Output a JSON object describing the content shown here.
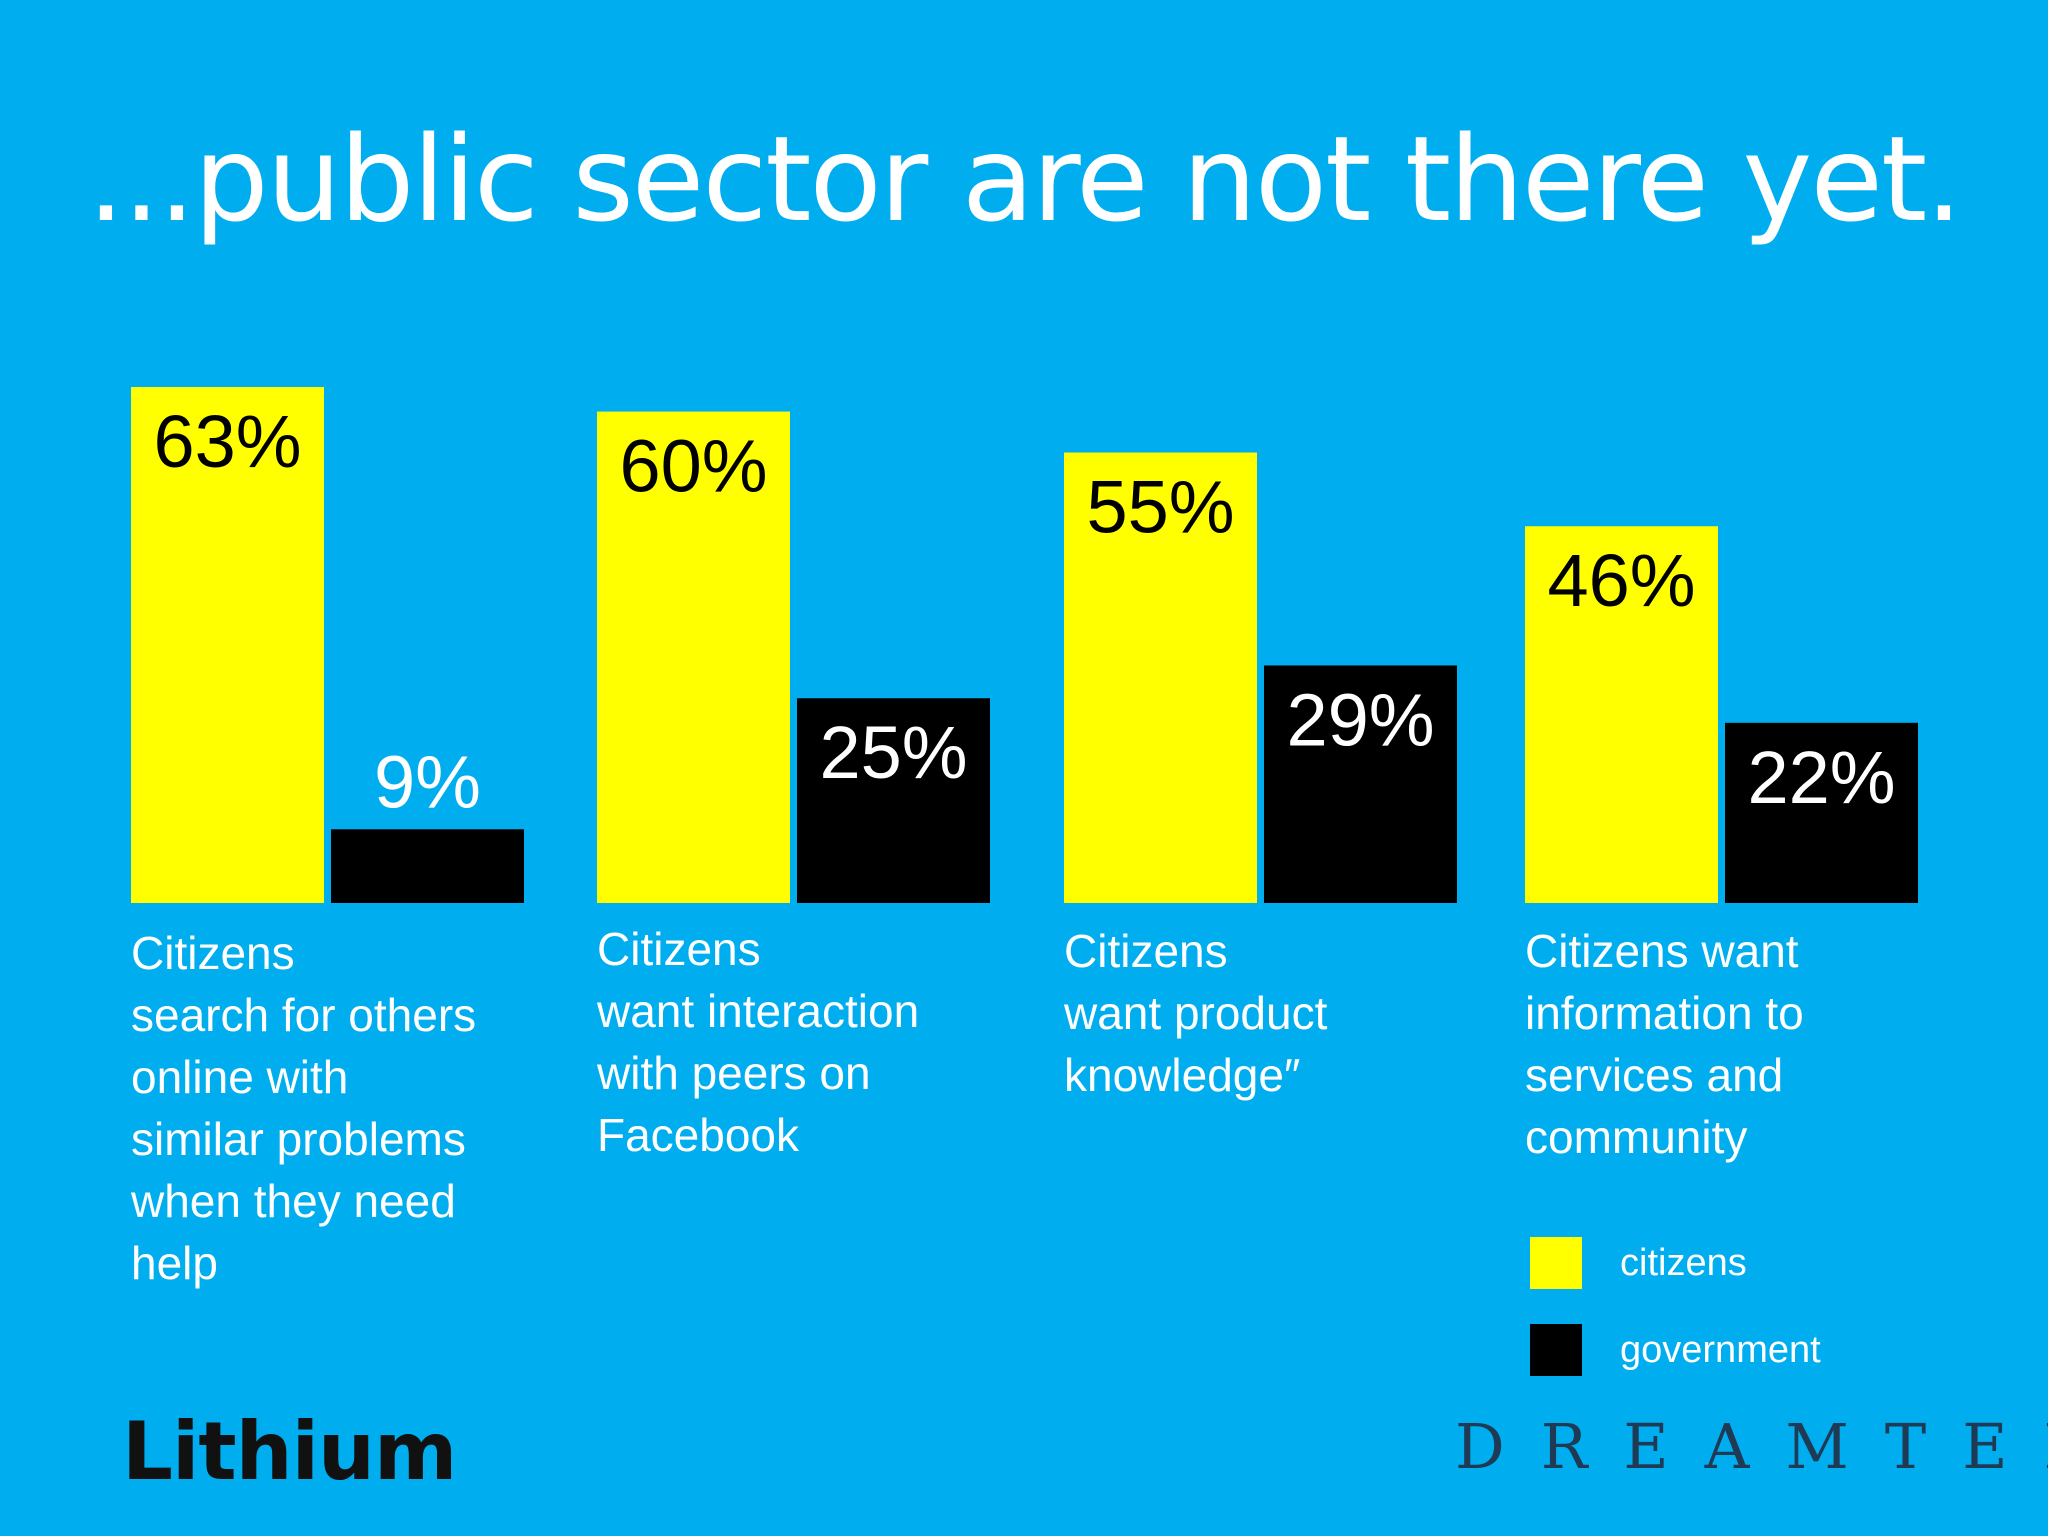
{
  "slide": {
    "title": "...public sector are not there yet."
  },
  "chart_data": {
    "type": "bar",
    "categories": [
      "Citizens\nsearch for others\nonline with\nsimilar problems\nwhen they need\nhelp",
      "Citizens\nwant interaction\nwith peers on\nFacebook",
      "Citizens\nwant product\nknowledge″",
      "Citizens want\ninformation to\nservices and\ncommunity"
    ],
    "series": [
      {
        "name": "citizens",
        "values": [
          63,
          60,
          55,
          46
        ],
        "color": "#FFFF00",
        "label_color": "#000000"
      },
      {
        "name": "government",
        "values": [
          9,
          25,
          29,
          22
        ],
        "color": "#000000",
        "label_color": "#ffffff"
      }
    ],
    "value_suffix": "%",
    "ylim": [
      0,
      63
    ],
    "grid": false,
    "legend_position": "bottom-right"
  },
  "legend": {
    "items": [
      {
        "label": "citizens",
        "color": "#FFFF00"
      },
      {
        "label": "government",
        "color": "#000000"
      }
    ]
  },
  "logos": {
    "left": "Lithium",
    "right": "DREAMTEK"
  }
}
